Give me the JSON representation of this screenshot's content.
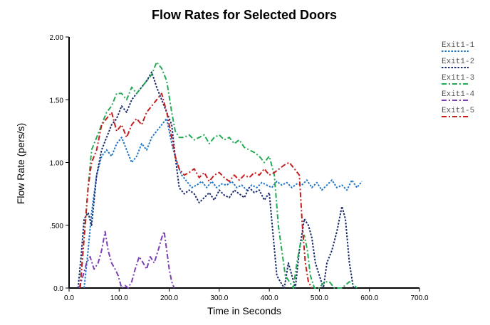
{
  "chart_data": {
    "type": "line",
    "title": "Flow Rates for Selected Doors",
    "xlabel": "Time in Seconds",
    "ylabel": "Flow Rate (pers/s)",
    "xlim": [
      0,
      700
    ],
    "ylim": [
      0,
      2
    ],
    "x_ticks": [
      0,
      100,
      200,
      300,
      400,
      500,
      600,
      700
    ],
    "x_tick_labels": [
      "0.0",
      "100.0",
      "200.0",
      "300.0",
      "400.0",
      "500.0",
      "600.0",
      "700.0"
    ],
    "y_ticks": [
      0,
      0.5,
      1,
      1.5,
      2
    ],
    "y_tick_labels": [
      "0.0",
      ".500",
      "1.00",
      "1.50",
      "2.00"
    ],
    "grid": false,
    "legend_position": "top-right",
    "series": [
      {
        "name": "Exit1-1",
        "color": "#1f77c9",
        "dash": "dotted",
        "points": [
          [
            30,
            0
          ],
          [
            38,
            0.3
          ],
          [
            45,
            0.6
          ],
          [
            55,
            0.9
          ],
          [
            65,
            1.05
          ],
          [
            75,
            1.1
          ],
          [
            85,
            1.05
          ],
          [
            95,
            1.15
          ],
          [
            105,
            1.2
          ],
          [
            115,
            1.1
          ],
          [
            125,
            1.0
          ],
          [
            135,
            1.05
          ],
          [
            145,
            1.15
          ],
          [
            155,
            1.1
          ],
          [
            165,
            1.2
          ],
          [
            175,
            1.25
          ],
          [
            185,
            1.3
          ],
          [
            195,
            1.35
          ],
          [
            205,
            1.15
          ],
          [
            215,
            1.0
          ],
          [
            225,
            0.9
          ],
          [
            235,
            0.85
          ],
          [
            245,
            0.8
          ],
          [
            255,
            0.82
          ],
          [
            265,
            0.85
          ],
          [
            275,
            0.8
          ],
          [
            285,
            0.85
          ],
          [
            295,
            0.8
          ],
          [
            305,
            0.83
          ],
          [
            315,
            0.82
          ],
          [
            325,
            0.85
          ],
          [
            335,
            0.8
          ],
          [
            345,
            0.82
          ],
          [
            355,
            0.78
          ],
          [
            365,
            0.82
          ],
          [
            375,
            0.8
          ],
          [
            385,
            0.84
          ],
          [
            395,
            0.82
          ],
          [
            405,
            0.8
          ],
          [
            415,
            0.85
          ],
          [
            425,
            0.82
          ],
          [
            435,
            0.84
          ],
          [
            445,
            0.8
          ],
          [
            455,
            0.83
          ],
          [
            465,
            0.82
          ],
          [
            475,
            0.86
          ],
          [
            485,
            0.8
          ],
          [
            495,
            0.84
          ],
          [
            505,
            0.78
          ],
          [
            515,
            0.82
          ],
          [
            525,
            0.86
          ],
          [
            535,
            0.8
          ],
          [
            545,
            0.82
          ],
          [
            555,
            0.78
          ],
          [
            565,
            0.86
          ],
          [
            575,
            0.8
          ],
          [
            585,
            0.85
          ]
        ]
      },
      {
        "name": "Exit1-2",
        "color": "#1a2a6c",
        "dash": "dotted",
        "points": [
          [
            18,
            0
          ],
          [
            25,
            0.3
          ],
          [
            30,
            0.55
          ],
          [
            38,
            0.6
          ],
          [
            45,
            0.5
          ],
          [
            55,
            0.9
          ],
          [
            65,
            1.1
          ],
          [
            75,
            1.2
          ],
          [
            85,
            1.3
          ],
          [
            95,
            1.35
          ],
          [
            105,
            1.45
          ],
          [
            115,
            1.4
          ],
          [
            125,
            1.5
          ],
          [
            135,
            1.55
          ],
          [
            145,
            1.6
          ],
          [
            155,
            1.65
          ],
          [
            165,
            1.72
          ],
          [
            175,
            1.6
          ],
          [
            185,
            1.5
          ],
          [
            195,
            1.4
          ],
          [
            205,
            1.3
          ],
          [
            212,
            1.05
          ],
          [
            220,
            0.8
          ],
          [
            230,
            0.75
          ],
          [
            240,
            0.78
          ],
          [
            250,
            0.75
          ],
          [
            260,
            0.68
          ],
          [
            270,
            0.72
          ],
          [
            280,
            0.76
          ],
          [
            290,
            0.7
          ],
          [
            300,
            0.78
          ],
          [
            310,
            0.74
          ],
          [
            320,
            0.72
          ],
          [
            330,
            0.78
          ],
          [
            340,
            0.75
          ],
          [
            350,
            0.72
          ],
          [
            360,
            0.8
          ],
          [
            370,
            0.76
          ],
          [
            380,
            0.78
          ],
          [
            390,
            0.7
          ],
          [
            400,
            0.76
          ],
          [
            408,
            0.4
          ],
          [
            415,
            0.1
          ],
          [
            422,
            0.05
          ],
          [
            430,
            0
          ],
          [
            438,
            0.2
          ],
          [
            445,
            0.1
          ],
          [
            452,
            0
          ],
          [
            460,
            0.3
          ],
          [
            470,
            0.55
          ],
          [
            478,
            0.5
          ],
          [
            485,
            0.4
          ],
          [
            492,
            0.2
          ],
          [
            500,
            0.1
          ],
          [
            508,
            0
          ],
          [
            515,
            0.2
          ],
          [
            525,
            0.3
          ],
          [
            535,
            0.45
          ],
          [
            545,
            0.65
          ],
          [
            552,
            0.55
          ],
          [
            560,
            0.2
          ],
          [
            568,
            0
          ]
        ]
      },
      {
        "name": "Exit1-3",
        "color": "#22aa55",
        "dash": "dashdot",
        "points": [
          [
            22,
            0
          ],
          [
            30,
            0.4
          ],
          [
            38,
            0.8
          ],
          [
            45,
            1.1
          ],
          [
            55,
            1.2
          ],
          [
            65,
            1.3
          ],
          [
            75,
            1.4
          ],
          [
            85,
            1.45
          ],
          [
            95,
            1.55
          ],
          [
            105,
            1.55
          ],
          [
            115,
            1.5
          ],
          [
            125,
            1.6
          ],
          [
            135,
            1.55
          ],
          [
            145,
            1.6
          ],
          [
            155,
            1.65
          ],
          [
            165,
            1.7
          ],
          [
            175,
            1.8
          ],
          [
            185,
            1.75
          ],
          [
            195,
            1.65
          ],
          [
            205,
            1.4
          ],
          [
            212,
            1.25
          ],
          [
            220,
            1.2
          ],
          [
            230,
            1.2
          ],
          [
            240,
            1.22
          ],
          [
            250,
            1.18
          ],
          [
            260,
            1.2
          ],
          [
            270,
            1.22
          ],
          [
            280,
            1.15
          ],
          [
            290,
            1.2
          ],
          [
            300,
            1.22
          ],
          [
            310,
            1.18
          ],
          [
            320,
            1.2
          ],
          [
            330,
            1.15
          ],
          [
            340,
            1.18
          ],
          [
            350,
            1.12
          ],
          [
            360,
            1.1
          ],
          [
            370,
            1.08
          ],
          [
            380,
            1.05
          ],
          [
            390,
            1.0
          ],
          [
            400,
            1.05
          ],
          [
            410,
            0.9
          ],
          [
            418,
            0.5
          ],
          [
            425,
            0.3
          ],
          [
            432,
            0.1
          ],
          [
            440,
            0.05
          ],
          [
            448,
            0
          ],
          [
            455,
            0.2
          ],
          [
            462,
            0.35
          ],
          [
            470,
            0.42
          ],
          [
            476,
            0.3
          ],
          [
            482,
            0.1
          ],
          [
            490,
            0
          ],
          [
            500,
            0
          ],
          [
            510,
            0.05
          ],
          [
            520,
            0.05
          ],
          [
            530,
            0.0
          ],
          [
            545,
            0
          ],
          [
            560,
            0.05
          ],
          [
            570,
            0.02
          ],
          [
            575,
            0
          ]
        ]
      },
      {
        "name": "Exit1-4",
        "color": "#7b3fb5",
        "dash": "dashdot",
        "points": [
          [
            20,
            0
          ],
          [
            28,
            0.1
          ],
          [
            35,
            0.2
          ],
          [
            42,
            0.25
          ],
          [
            50,
            0.15
          ],
          [
            58,
            0.2
          ],
          [
            65,
            0.3
          ],
          [
            72,
            0.45
          ],
          [
            78,
            0.3
          ],
          [
            85,
            0.2
          ],
          [
            92,
            0.15
          ],
          [
            98,
            0.1
          ],
          [
            105,
            0
          ],
          [
            112,
            0.02
          ],
          [
            118,
            0
          ],
          [
            125,
            0.05
          ],
          [
            132,
            0.15
          ],
          [
            140,
            0.25
          ],
          [
            148,
            0.2
          ],
          [
            155,
            0.15
          ],
          [
            162,
            0.25
          ],
          [
            170,
            0.2
          ],
          [
            178,
            0.3
          ],
          [
            185,
            0.4
          ],
          [
            190,
            0.45
          ],
          [
            195,
            0.3
          ],
          [
            200,
            0.15
          ],
          [
            205,
            0.05
          ],
          [
            210,
            0
          ]
        ]
      },
      {
        "name": "Exit1-5",
        "color": "#c41e1e",
        "dash": "dashdot",
        "points": [
          [
            22,
            0
          ],
          [
            30,
            0.4
          ],
          [
            38,
            0.8
          ],
          [
            45,
            1.0
          ],
          [
            55,
            1.1
          ],
          [
            65,
            1.3
          ],
          [
            75,
            1.35
          ],
          [
            85,
            1.4
          ],
          [
            95,
            1.25
          ],
          [
            105,
            1.3
          ],
          [
            115,
            1.2
          ],
          [
            125,
            1.3
          ],
          [
            135,
            1.35
          ],
          [
            145,
            1.3
          ],
          [
            155,
            1.4
          ],
          [
            165,
            1.45
          ],
          [
            175,
            1.5
          ],
          [
            185,
            1.55
          ],
          [
            195,
            1.4
          ],
          [
            205,
            1.2
          ],
          [
            212,
            1.05
          ],
          [
            220,
            0.95
          ],
          [
            230,
            0.9
          ],
          [
            240,
            0.92
          ],
          [
            250,
            0.95
          ],
          [
            260,
            0.88
          ],
          [
            270,
            0.92
          ],
          [
            280,
            0.85
          ],
          [
            290,
            0.9
          ],
          [
            300,
            0.92
          ],
          [
            310,
            0.88
          ],
          [
            320,
            0.85
          ],
          [
            330,
            0.9
          ],
          [
            340,
            0.86
          ],
          [
            350,
            0.9
          ],
          [
            360,
            0.88
          ],
          [
            370,
            0.92
          ],
          [
            380,
            0.9
          ],
          [
            390,
            0.95
          ],
          [
            400,
            0.9
          ],
          [
            410,
            0.92
          ],
          [
            420,
            0.95
          ],
          [
            430,
            0.98
          ],
          [
            440,
            1.0
          ],
          [
            450,
            0.95
          ],
          [
            460,
            0.9
          ],
          [
            466,
            0.5
          ],
          [
            472,
            0.2
          ],
          [
            478,
            0.05
          ],
          [
            485,
            0
          ]
        ]
      }
    ]
  }
}
